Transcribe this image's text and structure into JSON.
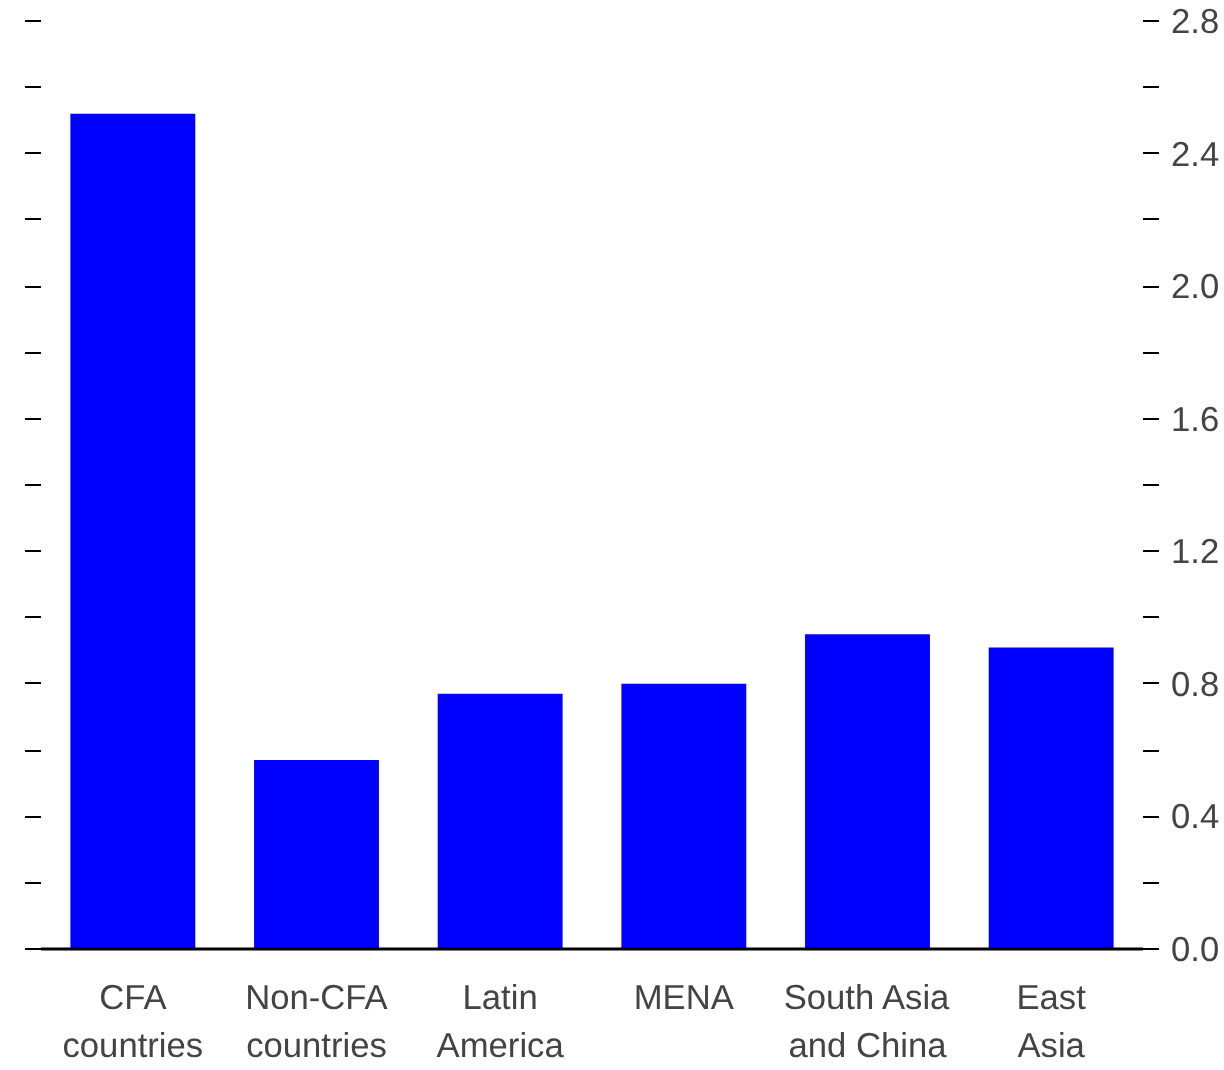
{
  "chart_data": {
    "type": "bar",
    "categories": [
      "CFA\ncountries",
      "Non-CFA\ncountries",
      "Latin\nAmerica",
      "MENA",
      "South Asia\nand China",
      "East\nAsia"
    ],
    "values": [
      2.52,
      0.57,
      0.77,
      0.8,
      0.95,
      0.91
    ],
    "color": "#0000ff",
    "ylim": [
      0,
      2.8
    ],
    "yticks": [
      {
        "value": 0,
        "label": "0.0"
      },
      {
        "value": 0.2,
        "label": null
      },
      0.4,
      {
        "value": 0.6,
        "label": null
      },
      0.8,
      {
        "value": 1.0,
        "label": null
      },
      1.2,
      {
        "value": 1.4,
        "label": null
      },
      1.6,
      {
        "value": 1.8,
        "label": null
      },
      {
        "value": 2,
        "label": "2.0"
      },
      {
        "value": 2.2,
        "label": null
      },
      2.4,
      {
        "value": 2.6,
        "label": null
      },
      2.8
    ],
    "grid": false
  }
}
